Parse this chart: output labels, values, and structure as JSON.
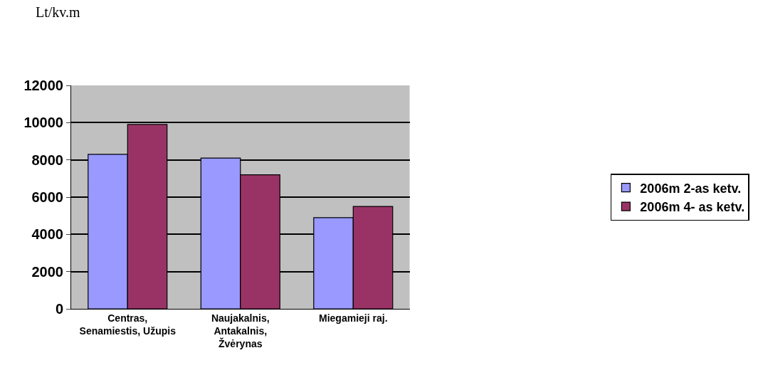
{
  "chart_data": {
    "type": "bar",
    "ylabel": "Lt/kv.m",
    "categories": [
      "Centras,\nSenamiestis, Užupis",
      "Naujakalnis,\nAntakalnis,\nŽvėrynas",
      "Miegamieji raj."
    ],
    "series": [
      {
        "name": "2006m 2-as ketv.",
        "color": "#9999ff",
        "values": [
          8300,
          8100,
          4900
        ]
      },
      {
        "name": "2006m 4- as ketv.",
        "color": "#993366",
        "values": [
          9900,
          7200,
          5500
        ]
      }
    ],
    "ylim": [
      0,
      12000
    ],
    "yticks": [
      0,
      2000,
      4000,
      6000,
      8000,
      10000,
      12000
    ],
    "grid": "y",
    "legend": "right"
  }
}
